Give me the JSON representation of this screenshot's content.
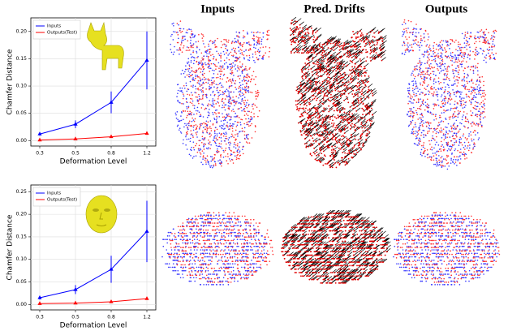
{
  "figure": {
    "columns": [
      "Inputs",
      "Pred. Drifts",
      "Outputs"
    ]
  },
  "chart_data": [
    {
      "type": "line",
      "xlabel": "Deformation Level",
      "ylabel": "Chamfer Distance",
      "categories": [
        "0.3",
        "0.5",
        "0.8",
        "1.2"
      ],
      "series": [
        {
          "name": "Inputs",
          "color": "#0000ff",
          "values": [
            0.012,
            0.03,
            0.07,
            0.147
          ],
          "errors": [
            0.003,
            0.007,
            0.02,
            0.053
          ]
        },
        {
          "name": "Outputs(Test)",
          "color": "#ff0000",
          "values": [
            0.001,
            0.003,
            0.007,
            0.013
          ]
        }
      ],
      "ylim": [
        -0.01,
        0.225
      ],
      "yticks": [
        {
          "value": 0,
          "label": "0.00"
        },
        {
          "value": 0.05,
          "label": "0.05"
        },
        {
          "value": 0.1,
          "label": "0.10"
        },
        {
          "value": 0.15,
          "label": "0.15"
        },
        {
          "value": 0.2,
          "label": "0.20"
        }
      ],
      "grid": true,
      "legend": "upper left"
    },
    {
      "type": "line",
      "xlabel": "Deformation Level",
      "ylabel": "Chamfer Distance",
      "categories": [
        "0.3",
        "0.5",
        "0.8",
        "1.2"
      ],
      "series": [
        {
          "name": "Inputs",
          "color": "#0000ff",
          "values": [
            0.015,
            0.033,
            0.078,
            0.162
          ],
          "errors": [
            0.004,
            0.01,
            0.03,
            0.068
          ]
        },
        {
          "name": "Outputs(Test)",
          "color": "#ff0000",
          "values": [
            0.002,
            0.003,
            0.006,
            0.013
          ]
        }
      ],
      "ylim": [
        -0.012,
        0.265
      ],
      "yticks": [
        {
          "value": 0,
          "label": "0.00"
        },
        {
          "value": 0.05,
          "label": "0.05"
        },
        {
          "value": 0.1,
          "label": "0.10"
        },
        {
          "value": 0.15,
          "label": "0.15"
        },
        {
          "value": 0.2,
          "label": "0.20"
        },
        {
          "value": 0.25,
          "label": "0.25"
        }
      ],
      "grid": true,
      "legend": "upper left"
    }
  ]
}
